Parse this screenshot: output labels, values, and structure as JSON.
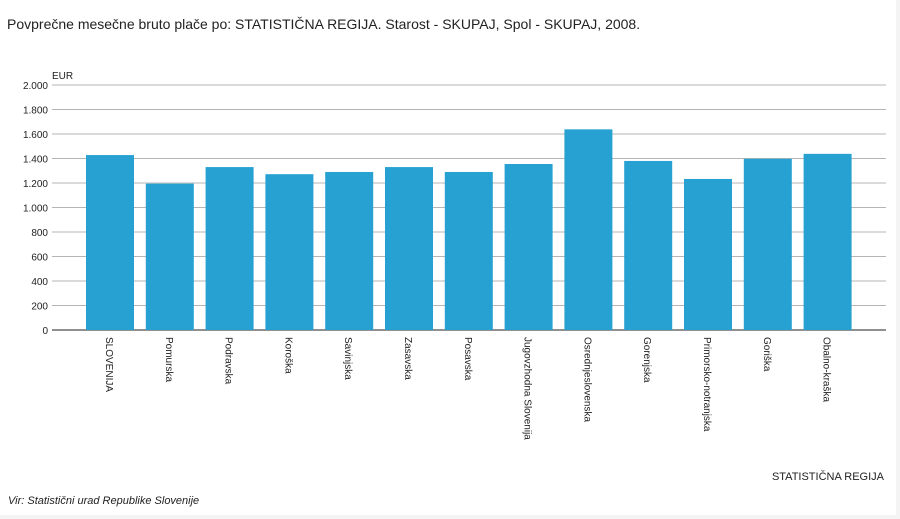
{
  "title": "Povprečne mesečne bruto plače po: STATISTIČNA REGIJA. Starost - SKUPAJ, Spol - SKUPAJ, 2008.",
  "source": "Vir: Statistični urad Republike Slovenije",
  "colors": {
    "bar": "#27a1d2",
    "grid": "#b5b5b5",
    "axis": "#222222"
  },
  "chart_data": {
    "type": "bar",
    "title": "Povprečne mesečne bruto plače po: STATISTIČNA REGIJA. Starost - SKUPAJ, Spol - SKUPAJ, 2008.",
    "xlabel": "STATISTIČNA REGIJA",
    "ylabel": "EUR",
    "ylim": [
      0,
      2000
    ],
    "yticks": [
      {
        "value": 0,
        "label": "0"
      },
      {
        "value": 200,
        "label": "200"
      },
      {
        "value": 400,
        "label": "400"
      },
      {
        "value": 600,
        "label": "600"
      },
      {
        "value": 800,
        "label": "800"
      },
      {
        "value": 1000,
        "label": "1.000"
      },
      {
        "value": 1200,
        "label": "1.200"
      },
      {
        "value": 1400,
        "label": "1.400"
      },
      {
        "value": 1600,
        "label": "1.600"
      },
      {
        "value": 1800,
        "label": "1.800"
      },
      {
        "value": 2000,
        "label": "2.000"
      }
    ],
    "grid": true,
    "categories": [
      "SLOVENIJA",
      "Pomurska",
      "Podravska",
      "Koroška",
      "Savinjska",
      "Zasavska",
      "Posavska",
      "Jugovzhodna Slovenija",
      "Osrednjeslovenska",
      "Gorenjska",
      "Primorsko-notranjska",
      "Goriška",
      "Obalno-kraška"
    ],
    "values": [
      1428,
      1195,
      1330,
      1272,
      1290,
      1330,
      1290,
      1355,
      1638,
      1380,
      1233,
      1398,
      1438
    ]
  }
}
